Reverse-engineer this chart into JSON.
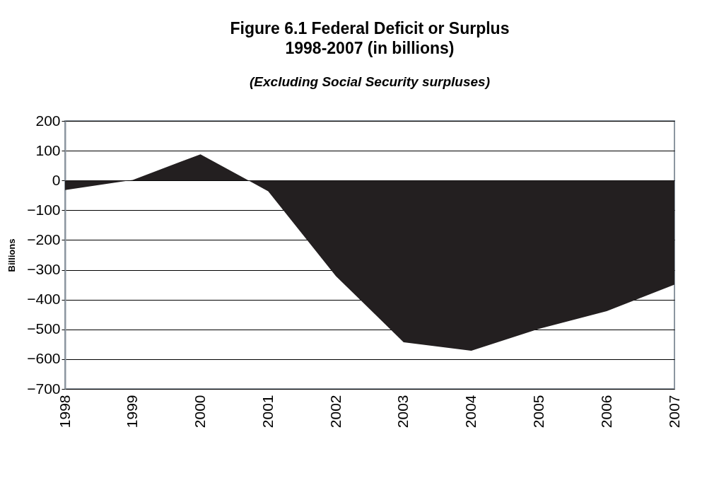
{
  "chart_data": {
    "type": "area",
    "title": "Figure 6.1  Federal Deficit or Surplus\n1998-2007 (in billions)",
    "subtitle": "(Excluding Social Security surpluses)",
    "ylabel": "Billions",
    "categories": [
      "1998",
      "1999",
      "2000",
      "2001",
      "2002",
      "2003",
      "2004",
      "2005",
      "2006",
      "2007"
    ],
    "series": [
      {
        "color": "#231f20",
        "values": [
          -32,
          2,
          88,
          -36,
          -321,
          -543,
          -572,
          -498,
          -439,
          -350
        ]
      }
    ],
    "ylim": [
      -700,
      200
    ],
    "yticks": [
      -700,
      -600,
      -500,
      -400,
      -300,
      -200,
      -100,
      0,
      100,
      200
    ],
    "grid": "y"
  }
}
